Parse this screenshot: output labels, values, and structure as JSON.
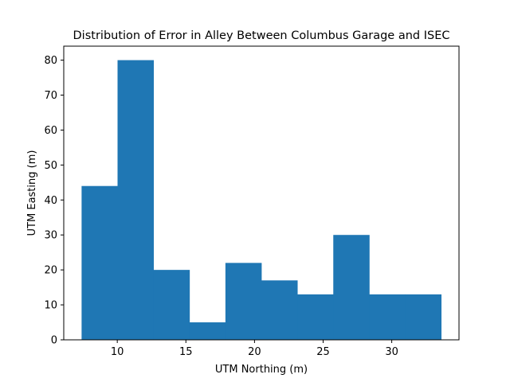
{
  "chart_data": {
    "type": "bar",
    "title": "Distribution of Error in Alley Between Columbus Garage and ISEC",
    "xlabel": "UTM Northing (m)",
    "ylabel": "UTM Easting (m)",
    "bin_edges": [
      7.4,
      10.02,
      12.64,
      15.26,
      17.88,
      20.5,
      23.12,
      25.74,
      28.36,
      30.98,
      33.6
    ],
    "values": [
      44,
      80,
      20,
      5,
      22,
      17,
      13,
      30,
      13,
      13
    ],
    "xlim": [
      6.1,
      34.9
    ],
    "ylim": [
      0,
      84
    ],
    "xticks": [
      10,
      15,
      20,
      25,
      30
    ],
    "yticks": [
      0,
      10,
      20,
      30,
      40,
      50,
      60,
      70,
      80
    ],
    "bar_color": "#1f77b4",
    "grid": false,
    "legend": "none"
  }
}
